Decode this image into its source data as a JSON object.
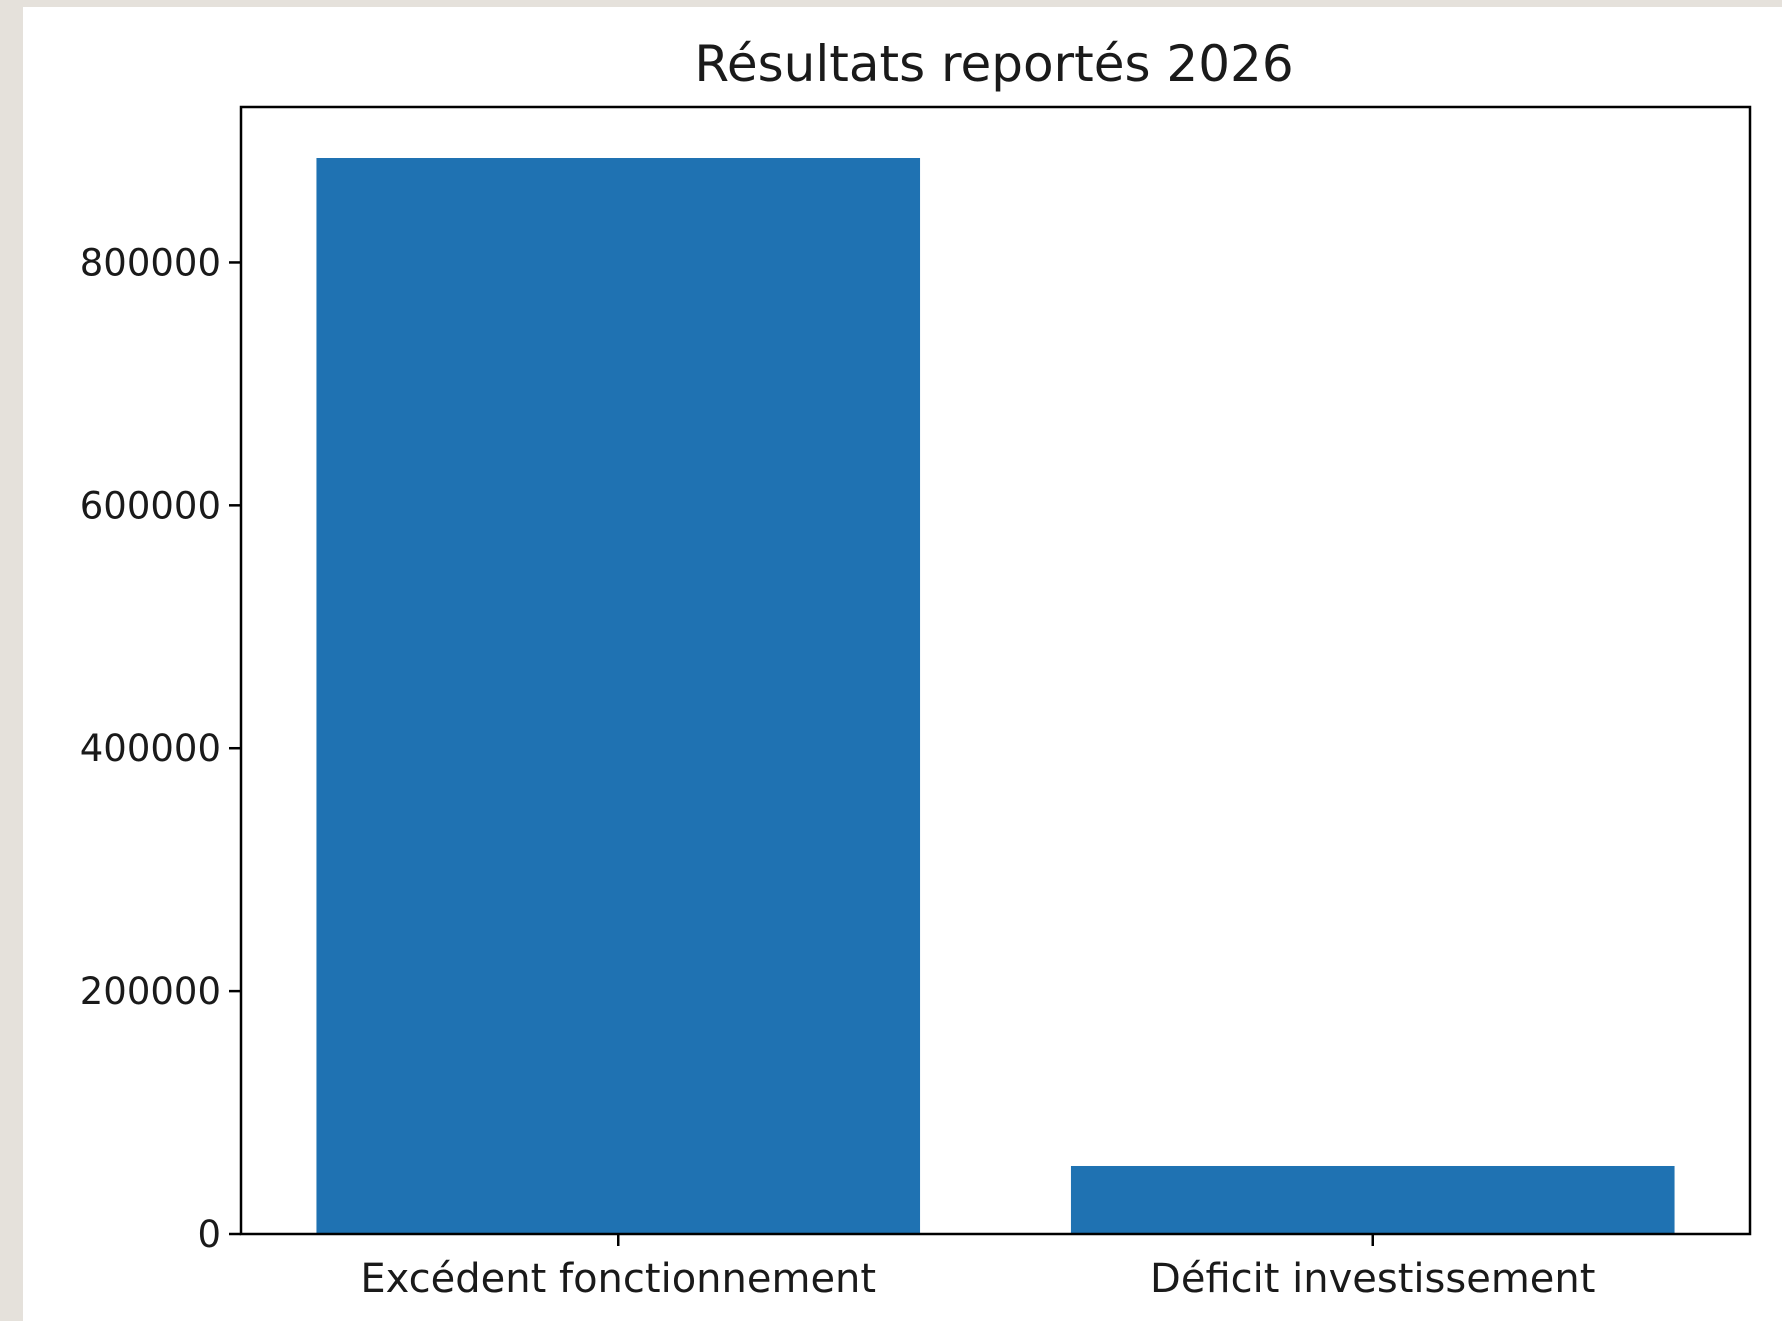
{
  "chart_data": {
    "type": "bar",
    "title": "Résultats reportés 2026",
    "xlabel": "",
    "ylabel": "",
    "categories": [
      "Excédent fonctionnement",
      "Déficit investissement"
    ],
    "values": [
      886000,
      56000
    ],
    "ylim": [
      0,
      928000
    ],
    "yticks": [
      0,
      200000,
      400000,
      600000,
      800000
    ],
    "ytick_labels": [
      "0",
      "200000",
      "400000",
      "600000",
      "800000"
    ],
    "grid": false,
    "legend": null,
    "colors": {
      "bar": "#1f72b2",
      "page_background": "#e5e1db",
      "figure_background": "#ffffff",
      "axis": "#000000",
      "text": "#1a1a1a"
    }
  }
}
